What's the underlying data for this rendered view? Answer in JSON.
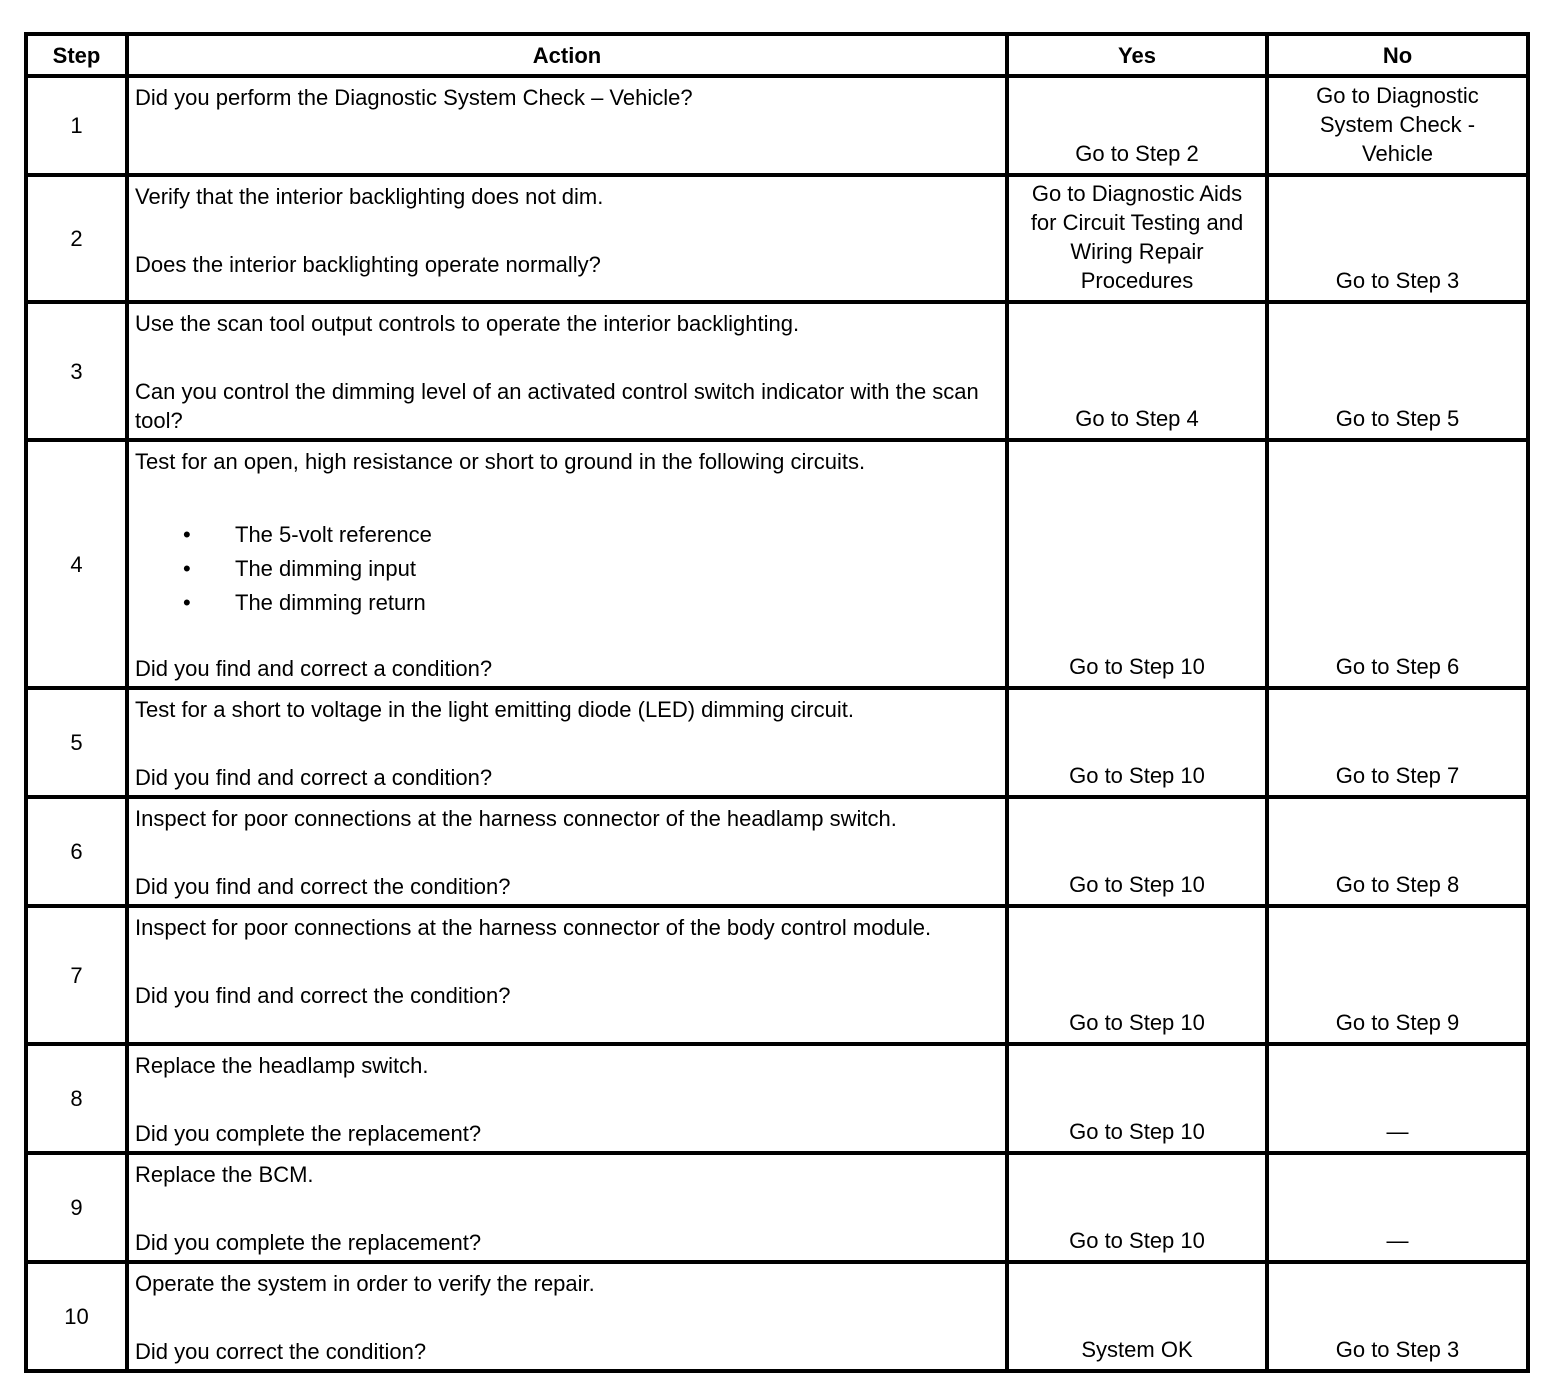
{
  "table": {
    "headers": {
      "step": "Step",
      "action": "Action",
      "yes": "Yes",
      "no": "No"
    },
    "rows": [
      {
        "step": "1",
        "action": [
          {
            "text": "Did you perform the Diagnostic System Check – Vehicle?"
          }
        ],
        "yes": "Go to Step 2",
        "no": "Go to Diagnostic\nSystem Check -\nVehicle"
      },
      {
        "step": "2",
        "action": [
          {
            "text": "Verify that the interior backlighting does not dim."
          },
          {
            "text": "Does the interior backlighting operate normally?"
          }
        ],
        "yes": "Go to Diagnostic Aids\nfor Circuit Testing and\nWiring Repair\nProcedures",
        "no": "Go to Step 3"
      },
      {
        "step": "3",
        "action": [
          {
            "text": "Use the scan tool output controls to operate the interior backlighting."
          },
          {
            "text": "Can you control the dimming level of an activated control switch indicator with the scan tool?"
          }
        ],
        "yes": "Go to Step 4",
        "no": "Go to Step 5"
      },
      {
        "step": "4",
        "action": [
          {
            "text": "Test for an open, high resistance or short to ground in the following circuits."
          },
          {
            "bullets": [
              "The 5-volt reference",
              "The dimming input",
              "The dimming return"
            ]
          },
          {
            "text": "Did you find and correct a condition?"
          }
        ],
        "yes": "Go to Step 10",
        "no": "Go to Step 6"
      },
      {
        "step": "5",
        "action": [
          {
            "text": "Test for a short to voltage in the light emitting diode (LED) dimming circuit."
          },
          {
            "text": "Did you find and correct a condition?"
          }
        ],
        "yes": "Go to Step 10",
        "no": "Go to Step 7"
      },
      {
        "step": "6",
        "action": [
          {
            "text": "Inspect for poor connections at the harness connector of the headlamp switch."
          },
          {
            "text": "Did you find and correct the condition?"
          }
        ],
        "yes": "Go to Step 10",
        "no": "Go to Step 8"
      },
      {
        "step": "7",
        "action": [
          {
            "text": "Inspect for poor connections at the harness connector of the body control module."
          },
          {
            "text": "Did you find and correct the condition?"
          }
        ],
        "yes": "Go to Step 10",
        "no": "Go to Step 9"
      },
      {
        "step": "8",
        "action": [
          {
            "text": "Replace the headlamp switch."
          },
          {
            "text": "Did you complete the replacement?"
          }
        ],
        "yes": "Go to Step 10",
        "no": "—"
      },
      {
        "step": "9",
        "action": [
          {
            "text": "Replace the BCM."
          },
          {
            "text": "Did you complete the replacement?"
          }
        ],
        "yes": "Go to Step 10",
        "no": "—"
      },
      {
        "step": "10",
        "action": [
          {
            "text": "Operate the system in order to verify the repair."
          },
          {
            "text": "Did you correct the condition?"
          }
        ],
        "yes": "System OK",
        "no": "Go to Step 3"
      }
    ]
  }
}
